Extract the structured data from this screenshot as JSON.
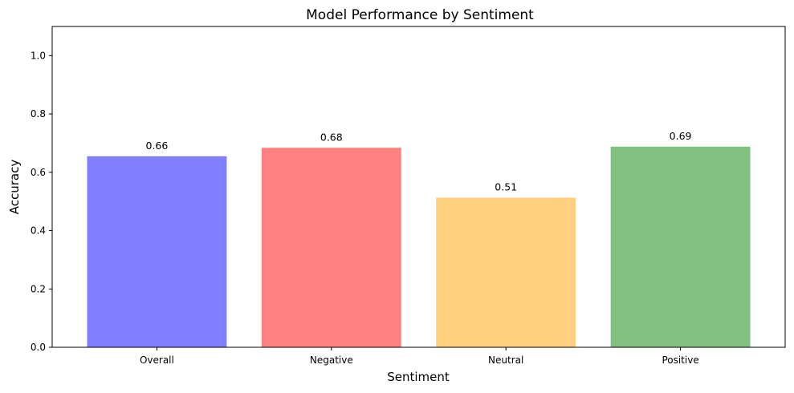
{
  "chart_data": {
    "type": "bar",
    "title": "Model Performance by Sentiment",
    "xlabel": "Sentiment",
    "ylabel": "Accuracy",
    "categories": [
      "Overall",
      "Negative",
      "Neutral",
      "Positive"
    ],
    "values": [
      0.655,
      0.684,
      0.513,
      0.688
    ],
    "value_labels": [
      "0.66",
      "0.68",
      "0.51",
      "0.69"
    ],
    "colors": [
      "#8080ff",
      "#ff8080",
      "#ffd080",
      "#80c080"
    ],
    "ylim": [
      0,
      1.1
    ],
    "yticks": [
      0.0,
      0.2,
      0.4,
      0.6,
      0.8,
      1.0
    ],
    "ytick_labels": [
      "0.0",
      "0.2",
      "0.4",
      "0.6",
      "0.8",
      "1.0"
    ],
    "grid": false,
    "legend": "none"
  }
}
